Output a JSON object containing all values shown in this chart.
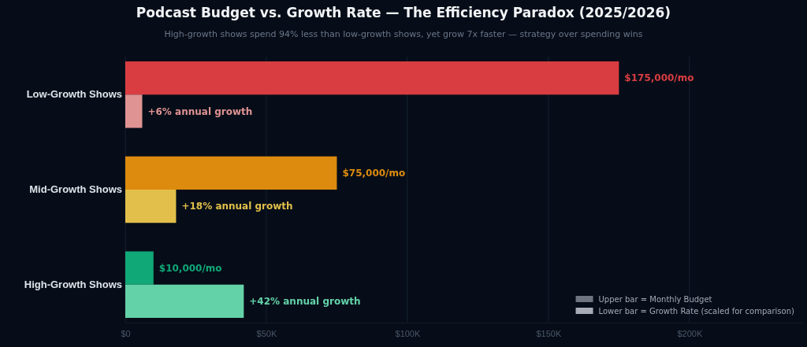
{
  "chart_data": {
    "type": "bar",
    "orientation": "horizontal",
    "title": "Podcast Budget vs. Growth Rate — The Efficiency Paradox (2025/2026)",
    "subtitle": "High-growth shows spend 94% less than low-growth shows, yet grow 7x faster — strategy over spending wins",
    "categories": [
      "Low-Growth Shows",
      "Mid-Growth Shows",
      "High-Growth Shows"
    ],
    "series": [
      {
        "name": "Upper bar = Monthly Budget",
        "color": "#6e7480",
        "colors": [
          "#d93d42",
          "#dc8b0e",
          "#10a877"
        ],
        "values": [
          175000,
          75000,
          10000
        ],
        "value_labels": [
          "$175,000/mo",
          "$75,000/mo",
          "$10,000/mo"
        ]
      },
      {
        "name": "Lower bar = Growth Rate (scaled for comparison)",
        "color": "#a7acb7",
        "colors": [
          "#e09393",
          "#e2bf4a",
          "#64d2a8"
        ],
        "values": [
          6000,
          18000,
          42000
        ]
      }
    ],
    "xlim": [
      0,
      240000
    ],
    "xticks": [
      {
        "value": 0,
        "label": "$0"
      },
      {
        "value": 50000,
        "label": "$50K"
      },
      {
        "value": 100000,
        "label": "$100K"
      },
      {
        "value": 150000,
        "label": "$150K"
      },
      {
        "value": 200000,
        "label": "$200K"
      }
    ],
    "annotations": [
      {
        "text": "+6% annual growth",
        "x": 6000,
        "y": "Low-Growth Shows"
      },
      {
        "text": "+18% annual growth",
        "x": 18000,
        "y": "Mid-Growth Shows"
      },
      {
        "text": "+42% annual growth",
        "x": 42000,
        "y": "High-Growth Shows"
      }
    ],
    "grid": "x",
    "legend": "bottom right"
  }
}
